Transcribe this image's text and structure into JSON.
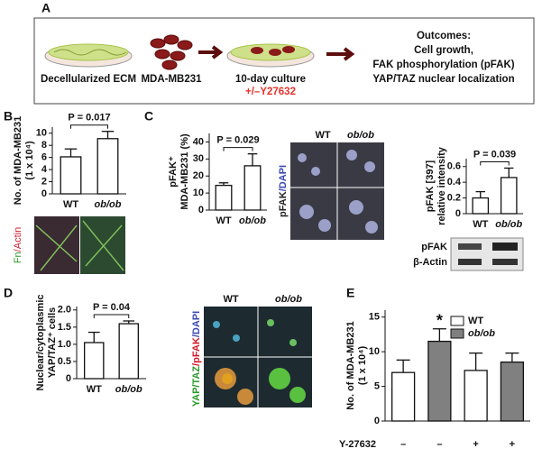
{
  "panels": [
    "A",
    "B",
    "C",
    "D",
    "E"
  ],
  "schematic": {
    "ecm": "Decellularized ECM",
    "cells": "MDA-MB231",
    "culture": "10-day culture",
    "treatment": "+/–Y27632",
    "outcomes": [
      "Outcomes:",
      "Cell growth,",
      "FAK phosphorylation (pFAK)",
      "YAP/TAZ nuclear localization"
    ]
  },
  "images": {
    "b_stain": [
      "Fn",
      "/Actin"
    ],
    "c_groups": [
      "WT",
      "ob/ob"
    ],
    "c_stain": [
      "pFAK",
      "/DAPI"
    ],
    "d_groups": [
      "WT",
      "ob/ob"
    ],
    "d_stain": [
      "YAP/TAZ",
      "/pFAK",
      "/DAPI"
    ]
  },
  "blot": {
    "labels": [
      "pFAK",
      "β-Actin"
    ]
  },
  "chart_data": [
    {
      "type": "bar",
      "categories": [
        "WT",
        "ob/ob"
      ],
      "values": [
        6.1,
        9.1
      ],
      "errors": [
        1.3,
        1.2
      ],
      "color": "#ffffff",
      "ylabel": [
        "No. of MDA-MB231",
        "(1 x 10⁴)"
      ],
      "ylim": [
        0,
        11
      ],
      "yticks": [
        0,
        2,
        4,
        6,
        8,
        10
      ],
      "annotation": "P = 0.017"
    },
    {
      "type": "bar",
      "categories": [
        "WT",
        "ob/ob"
      ],
      "values": [
        14.5,
        26
      ],
      "errors": [
        1.5,
        7
      ],
      "color": "#ffffff",
      "ylabel": [
        "pFAK⁺",
        "MDA-MB231 (%)"
      ],
      "ylim": [
        0,
        45
      ],
      "yticks": [
        0,
        10,
        20,
        30,
        40
      ],
      "annotation": "P = 0.029"
    },
    {
      "type": "bar",
      "categories": [
        "WT",
        "ob/ob"
      ],
      "values": [
        0.2,
        0.46
      ],
      "errors": [
        0.08,
        0.12
      ],
      "color": "#ffffff",
      "ylabel": [
        "pFAK [397]",
        "relative intensity"
      ],
      "ylim": [
        0,
        0.7
      ],
      "yticks": [
        0,
        0.2,
        0.4,
        0.6
      ],
      "annotation": "P = 0.039"
    },
    {
      "type": "bar",
      "categories": [
        "WT",
        "ob/ob"
      ],
      "values": [
        1.05,
        1.6
      ],
      "errors": [
        0.3,
        0.08
      ],
      "color": "#ffffff",
      "ylabel": [
        "Nuclear/cytoplasmic",
        "YAP/TAZ⁺ cells"
      ],
      "ylim": [
        0,
        2.1
      ],
      "yticks": [
        0,
        0.5,
        {
          "value": 1,
          "label": "1.0"
        },
        1.5,
        {
          "value": 2,
          "label": "2.0"
        }
      ],
      "annotation": "P = 0.04"
    },
    {
      "type": "bar",
      "categories": [
        "–",
        "–",
        "+",
        "+"
      ],
      "xlabel": "Y-27632",
      "series": [
        {
          "name": "WT",
          "color": "#ffffff",
          "values": [
            7,
            null,
            7.3,
            null
          ],
          "errors": [
            1.8,
            null,
            2.5,
            null
          ]
        },
        {
          "name": "ob/ob",
          "color": "#808080",
          "values": [
            null,
            11.5,
            null,
            8.5
          ],
          "errors": [
            null,
            1.8,
            null,
            1.3
          ]
        }
      ],
      "ylabel": [
        "No. of MDA-MB231",
        "(1 x 10⁴)"
      ],
      "ylim": [
        0,
        16
      ],
      "yticks": [
        0,
        5,
        10,
        15
      ],
      "annotation": "*"
    }
  ]
}
